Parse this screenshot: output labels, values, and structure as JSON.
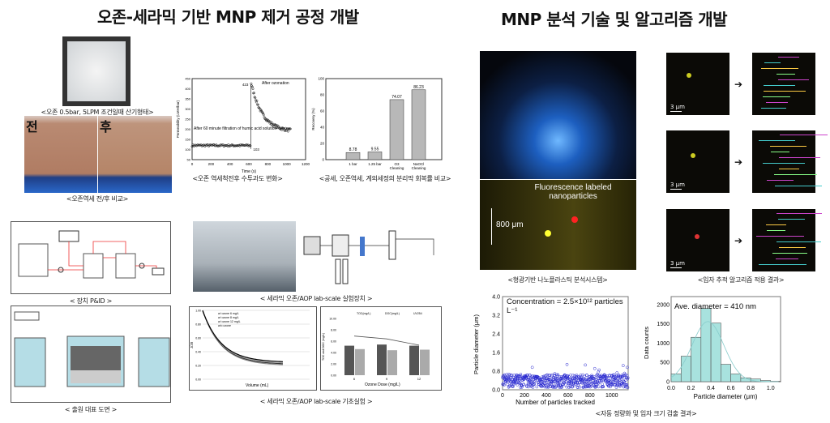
{
  "left_title": "오존-세라믹 기반 MNP 제거 공정 개발",
  "right_title": "MNP 분석 기술 및 알고리즘 개발",
  "captions": {
    "aeration": "<오존 0.5bar, 5LPM 조건일때 산기형태>",
    "before_after": "<오존역세 전/후 비교>",
    "permeability": "<오존 역세척전후 수투과도 변화>",
    "recovery": "<공세, 오존역세, 계외세정의 분리막 회복률 비교>",
    "pid": "< 장치 P&ID >",
    "lab_setup": "< 세라믹 오존/AOP lab-scale 실험장치 >",
    "drawing": "< 출원 대표 도면 >",
    "basic_exp": "< 세라믹 오존/AOP lab-scale 기초실험 >",
    "fluor_system": "<형광기반 나노플라스틱 분석시스템>",
    "tracking": "<입자 추적 알고리즘 적용 결과>",
    "auto_quant": "<자동 정량화 및 입자 크기 검출 결과>"
  },
  "photo_labels": {
    "before": "전",
    "after": "후"
  },
  "fluor_labels": {
    "text": "Fluorescence labeled nanoparticles",
    "scale": "800 μm"
  },
  "scale_bar": "3 μm",
  "chart_data": [
    {
      "type": "scatter",
      "title": "",
      "xlabel": "Time (s)",
      "ylabel": "Permeability (LMH/bar)",
      "xlim": [
        0,
        1200
      ],
      "ylim": [
        50,
        450
      ],
      "annotations": [
        "After 60 minute filtration of humic acid solution",
        "After ozonation",
        "423",
        "103"
      ],
      "xticks": [
        0,
        200,
        400,
        600,
        800,
        1000,
        1200
      ],
      "yticks": [
        50,
        100,
        150,
        200,
        250,
        300,
        350,
        400,
        450
      ]
    },
    {
      "type": "bar",
      "xlabel": "",
      "ylabel": "Recovery (%)",
      "ylim": [
        0,
        100
      ],
      "categories": [
        "1 bar",
        "1.25 bar",
        "O3 Cleaning",
        "NaOCl Cleaning"
      ],
      "values": [
        8.78,
        9.55,
        74.07,
        86.23
      ]
    },
    {
      "type": "line",
      "xlabel": "Volume (mL)",
      "ylabel": "J/J0",
      "xlim": [
        0,
        4000
      ],
      "ylim": [
        0,
        1
      ],
      "legend": [
        "w/ ozone 6 mg/L",
        "w/ ozone 8 mg/L",
        "w/ ozone 12 mg/L",
        "w/o ozone"
      ]
    },
    {
      "type": "bar",
      "xlabel": "Ozone Dose (mg/L)",
      "ylabel": "TOC and DOC (mg/L)",
      "categories": [
        "6",
        "9",
        "12"
      ],
      "series": [
        {
          "name": "TOC(mg/L)",
          "values": [
            5.2,
            5.4,
            5.2
          ]
        },
        {
          "name": "DOC(mg/L)",
          "values": [
            4.6,
            4.4,
            4.5
          ]
        },
        {
          "name": "UV254",
          "values": [
            6.9,
            6.4,
            5.3
          ]
        }
      ],
      "ylim": [
        0,
        10
      ]
    },
    {
      "type": "scatter",
      "xlabel": "Number of particles tracked",
      "ylabel": "Particle diameter (μm)",
      "xlim": [
        0,
        1150
      ],
      "ylim": [
        0,
        4.0
      ],
      "yticks": [
        "0.0",
        "0.8",
        "1.6",
        "2.4",
        "3.2",
        "4.0"
      ],
      "xticks": [
        "0",
        "200",
        "400",
        "600",
        "800",
        "1000"
      ],
      "annotation": "Concentration = 2.5×10¹² particles L⁻¹",
      "n_points": 1150
    },
    {
      "type": "bar",
      "xlabel": "Particle diameter (μm)",
      "ylabel": "Data counts",
      "annotation": "Ave. diameter = 410 nm",
      "categories": [
        "0.0-0.1",
        "0.1-0.2",
        "0.2-0.3",
        "0.3-0.4",
        "0.4-0.5",
        "0.5-0.6",
        "0.6-0.7",
        "0.7-0.8",
        "0.8-0.9",
        "0.9-1.0",
        "1.0-1.1"
      ],
      "values": [
        200,
        660,
        1150,
        1900,
        1520,
        450,
        200,
        100,
        70,
        30,
        10
      ],
      "yticks": [
        "0",
        "500",
        "1000",
        "1500",
        "2000"
      ],
      "xticks": [
        "0.0",
        "0.2",
        "0.4",
        "0.6",
        "0.8",
        "1.0"
      ],
      "ylim": [
        0,
        2100
      ]
    }
  ],
  "colors": {
    "scatter": "#2a2ad0",
    "hist": "#a8e2de",
    "bar_gray": "#b8b8b8"
  }
}
